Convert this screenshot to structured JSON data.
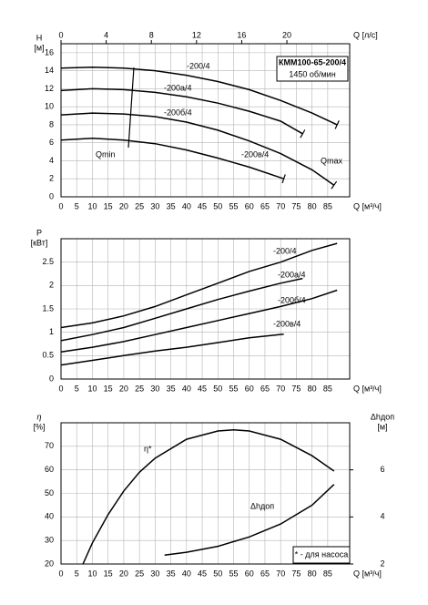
{
  "chart_data": [
    {
      "type": "line",
      "title": "КММ100-65-200/4",
      "subtitle": "1450 об/мин",
      "ylabel": "H",
      "yunit": "[м]",
      "xlabel": "Q [м³/ч]",
      "x2label": "Q [л/с]",
      "xlim": [
        0,
        92
      ],
      "xticks": [
        0,
        5,
        10,
        15,
        20,
        25,
        30,
        35,
        40,
        45,
        50,
        55,
        60,
        65,
        70,
        75,
        80,
        85
      ],
      "x2lim": [
        0,
        25.56
      ],
      "x2ticks": [
        0,
        4,
        8,
        12,
        16,
        20
      ],
      "ylim": [
        0,
        17
      ],
      "yticks": [
        0,
        2,
        4,
        6,
        8,
        10,
        12,
        14,
        16
      ],
      "grid": true,
      "end_marks": true,
      "annotations": [
        "Qmin",
        "Qmax"
      ],
      "series": [
        {
          "name": "-200/4",
          "color": "#000000",
          "x": [
            0,
            10,
            20,
            30,
            40,
            50,
            60,
            70,
            80,
            88
          ],
          "values": [
            14.3,
            14.4,
            14.3,
            14.0,
            13.5,
            12.8,
            11.9,
            10.7,
            9.3,
            8.0
          ]
        },
        {
          "name": "-200а/4",
          "color": "#000000",
          "x": [
            0,
            10,
            20,
            30,
            40,
            50,
            60,
            70,
            77
          ],
          "values": [
            11.8,
            12.0,
            11.9,
            11.6,
            11.1,
            10.4,
            9.5,
            8.4,
            7.0
          ]
        },
        {
          "name": "-200б/4",
          "color": "#000000",
          "x": [
            0,
            10,
            20,
            30,
            40,
            50,
            60,
            70,
            80,
            87
          ],
          "values": [
            9.1,
            9.3,
            9.2,
            8.9,
            8.3,
            7.4,
            6.2,
            4.8,
            3.0,
            1.3
          ]
        },
        {
          "name": "-200в/4",
          "color": "#000000",
          "x": [
            0,
            10,
            20,
            30,
            40,
            50,
            60,
            71
          ],
          "values": [
            6.3,
            6.5,
            6.3,
            5.9,
            5.2,
            4.3,
            3.3,
            2.0
          ]
        }
      ]
    },
    {
      "type": "line",
      "ylabel": "P",
      "yunit": "[кВт]",
      "xlabel": "Q [м³/ч]",
      "xlim": [
        0,
        92
      ],
      "xticks": [
        0,
        5,
        10,
        15,
        20,
        25,
        30,
        35,
        40,
        45,
        50,
        55,
        60,
        65,
        70,
        75,
        80,
        85
      ],
      "ylim": [
        0,
        3
      ],
      "yticks": [
        0,
        0.5,
        1,
        1.5,
        2,
        2.5
      ],
      "grid": true,
      "series": [
        {
          "name": "-200/4",
          "color": "#000000",
          "x": [
            0,
            10,
            20,
            30,
            40,
            50,
            60,
            70,
            80,
            88
          ],
          "values": [
            1.1,
            1.2,
            1.35,
            1.55,
            1.8,
            2.05,
            2.3,
            2.5,
            2.75,
            2.9
          ]
        },
        {
          "name": "-200а/4",
          "color": "#000000",
          "x": [
            0,
            10,
            20,
            30,
            40,
            50,
            60,
            70,
            77
          ],
          "values": [
            0.82,
            0.95,
            1.1,
            1.3,
            1.5,
            1.7,
            1.88,
            2.05,
            2.15
          ]
        },
        {
          "name": "-200б/4",
          "color": "#000000",
          "x": [
            0,
            10,
            20,
            30,
            40,
            50,
            60,
            70,
            80,
            88
          ],
          "values": [
            0.58,
            0.68,
            0.8,
            0.95,
            1.1,
            1.25,
            1.4,
            1.55,
            1.72,
            1.9
          ]
        },
        {
          "name": "-200в/4",
          "color": "#000000",
          "x": [
            0,
            10,
            20,
            30,
            40,
            50,
            60,
            71
          ],
          "values": [
            0.3,
            0.4,
            0.5,
            0.6,
            0.68,
            0.78,
            0.88,
            0.96
          ]
        }
      ]
    },
    {
      "type": "line",
      "ylabel": "η",
      "yunit": "[%]",
      "y2label": "Δhдоп",
      "y2unit": "[м]",
      "xlabel": "Q [м³/ч]",
      "xlim": [
        0,
        92
      ],
      "xticks": [
        0,
        5,
        10,
        15,
        20,
        25,
        30,
        35,
        40,
        45,
        50,
        55,
        60,
        65,
        70,
        75,
        80,
        85
      ],
      "ylim": [
        20,
        80
      ],
      "yticks": [
        20,
        30,
        40,
        50,
        60,
        70
      ],
      "y2lim": [
        2,
        8
      ],
      "y2ticks": [
        2,
        4,
        6
      ],
      "grid": true,
      "note": "* - для насоса",
      "series": [
        {
          "name": "η*",
          "color": "#000000",
          "x": [
            7,
            10,
            15,
            20,
            25,
            30,
            40,
            50,
            55,
            60,
            70,
            80,
            87
          ],
          "values": [
            20,
            29,
            41,
            51,
            59,
            65,
            73,
            76.5,
            77,
            76.5,
            73,
            66,
            59.5
          ]
        },
        {
          "name": "Δhдоп",
          "color": "#000000",
          "axis": "y2",
          "x": [
            33,
            40,
            50,
            60,
            70,
            80,
            87
          ],
          "values": [
            2.38,
            2.5,
            2.75,
            3.15,
            3.7,
            4.5,
            5.38
          ]
        }
      ]
    }
  ]
}
